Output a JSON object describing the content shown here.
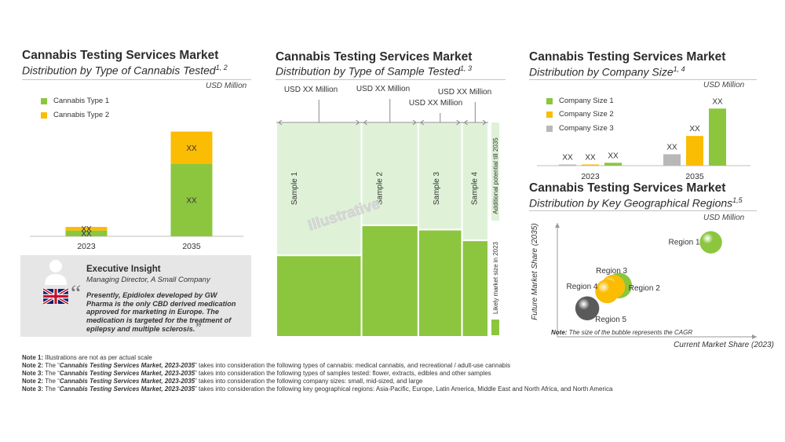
{
  "panel1": {
    "title": "Cannabis Testing Services Market",
    "subtitle": "Distribution by Type of Cannabis Tested",
    "subtitle_sup": "1, 2",
    "unit": "USD Million"
  },
  "panel2": {
    "title": "Cannabis Testing Services Market",
    "subtitle": "Distribution by Type of Sample Tested",
    "subtitle_sup": "1, 3",
    "watermark": "Illustrative",
    "side_top": "Additional potential till 2035",
    "side_bottom": "Likely market size in 2023"
  },
  "panel3": {
    "title": "Cannabis Testing Services Market",
    "subtitle": "Distribution by Company Size",
    "subtitle_sup": "1, 4",
    "unit": "USD Million"
  },
  "panel4": {
    "title": "Cannabis Testing Services Market",
    "subtitle": "Distribution by Key Geographical Regions",
    "subtitle_sup": "1,5",
    "unit": "USD Million",
    "note_label": "Note:",
    "note_text": "The size of the bubble represents the CAGR"
  },
  "insight": {
    "heading": "Executive Insight",
    "role": "Managing Director, A Small Company",
    "open_quote": "“",
    "close_quote": "”",
    "quote": "Presently, Epidiolex developed by GW Pharma is the only CBD derived medication approved for marketing in Europe. The medication is targeted for the treatment of epilepsy and multiple sclerosis."
  },
  "notes": [
    {
      "label": "Note 1:",
      "pre": " Illustrations are not as per actual scale",
      "title": "",
      "post": ""
    },
    {
      "label": "Note 2:",
      "pre": " The “",
      "title": "Cannabis Testing Services Market, 2023-2035",
      "post": "” takes into consideration the following types of cannabis: medical cannabis, and recreational / adult-use cannabis"
    },
    {
      "label": "Note 3:",
      "pre": " The “",
      "title": "Cannabis Testing Services Market, 2023-2035",
      "post": "” takes into consideration the following types of samples tested: flower, extracts, edibles and other samples"
    },
    {
      "label": "Note 2:",
      "pre": " The “",
      "title": "Cannabis Testing Services Market, 2023-2035",
      "post": "” takes into consideration the following company sizes: small, mid-sized, and large"
    },
    {
      "label": "Note 3:",
      "pre": " The “",
      "title": "Cannabis Testing Services Market, 2023-2035",
      "post": "” takes into consideration the following key geographical regions: Asia-Pacific, Europe, Latin America, Middle East and North Africa, and North America"
    }
  ],
  "colors": {
    "green": "#8cc63f",
    "yellow": "#fbbc04",
    "gray": "#b8b8b8",
    "light_green": "#dff2d8",
    "dark": "#5a5a5a"
  },
  "chart_data": [
    {
      "type": "bar",
      "stacked": true,
      "categories": [
        "2023",
        "2035"
      ],
      "series": [
        {
          "name": "Cannabis Type 1",
          "color": "#8cc63f",
          "values": [
            8,
            100
          ],
          "labels": [
            "XX",
            "XX"
          ]
        },
        {
          "name": "Cannabis Type 2",
          "color": "#fbbc04",
          "values": [
            5,
            45
          ],
          "labels": [
            "XX",
            "XX"
          ]
        }
      ],
      "ylim": [
        0,
        150
      ]
    },
    {
      "type": "bar",
      "variant": "marimekko",
      "categories": [
        "Sample 1",
        "Sample 2",
        "Sample 3",
        "Sample 4"
      ],
      "widths": [
        39,
        26,
        20,
        12
      ],
      "likely_2023": [
        38,
        52,
        50,
        45
      ],
      "potential_2035": [
        100,
        100,
        100,
        100
      ],
      "value_labels": [
        "USD XX  Million",
        "USD XX  Million",
        "USD XX  Million",
        "USD XX  Million"
      ],
      "ylim": [
        0,
        100
      ]
    },
    {
      "type": "bar",
      "categories": [
        "2023",
        "2035"
      ],
      "series": [
        {
          "name": "Company Size 1",
          "color": "#8cc63f",
          "values": [
            5,
            100
          ],
          "labels": [
            "XX",
            "XX"
          ]
        },
        {
          "name": "Company Size 2",
          "color": "#fbbc04",
          "values": [
            2,
            52
          ],
          "labels": [
            "XX",
            "XX"
          ]
        },
        {
          "name": "Company Size 3",
          "color": "#b8b8b8",
          "values": [
            1,
            20
          ],
          "labels": [
            "XX",
            "XX"
          ]
        }
      ],
      "order": [
        "Company Size 3",
        "Company Size 2",
        "Company Size 1"
      ],
      "ylim": [
        0,
        110
      ]
    },
    {
      "type": "scatter",
      "variant": "bubble",
      "xlabel": "Current Market Share (2023)",
      "ylabel": "Future Market Share (2035)",
      "xlim": [
        0,
        100
      ],
      "ylim": [
        0,
        100
      ],
      "points": [
        {
          "name": "Region 1",
          "x": 77,
          "y": 83,
          "size": 14,
          "color": "#8cc63f"
        },
        {
          "name": "Region 2",
          "x": 31,
          "y": 45,
          "size": 16,
          "color": "#8cc63f"
        },
        {
          "name": "Region 3",
          "x": 28,
          "y": 44,
          "size": 15,
          "color": "#fbbc04"
        },
        {
          "name": "Region 4",
          "x": 25,
          "y": 40,
          "size": 15,
          "color": "#fbbc04"
        },
        {
          "name": "Region 5",
          "x": 15,
          "y": 25,
          "size": 15,
          "color": "#5a5a5a"
        }
      ]
    }
  ]
}
